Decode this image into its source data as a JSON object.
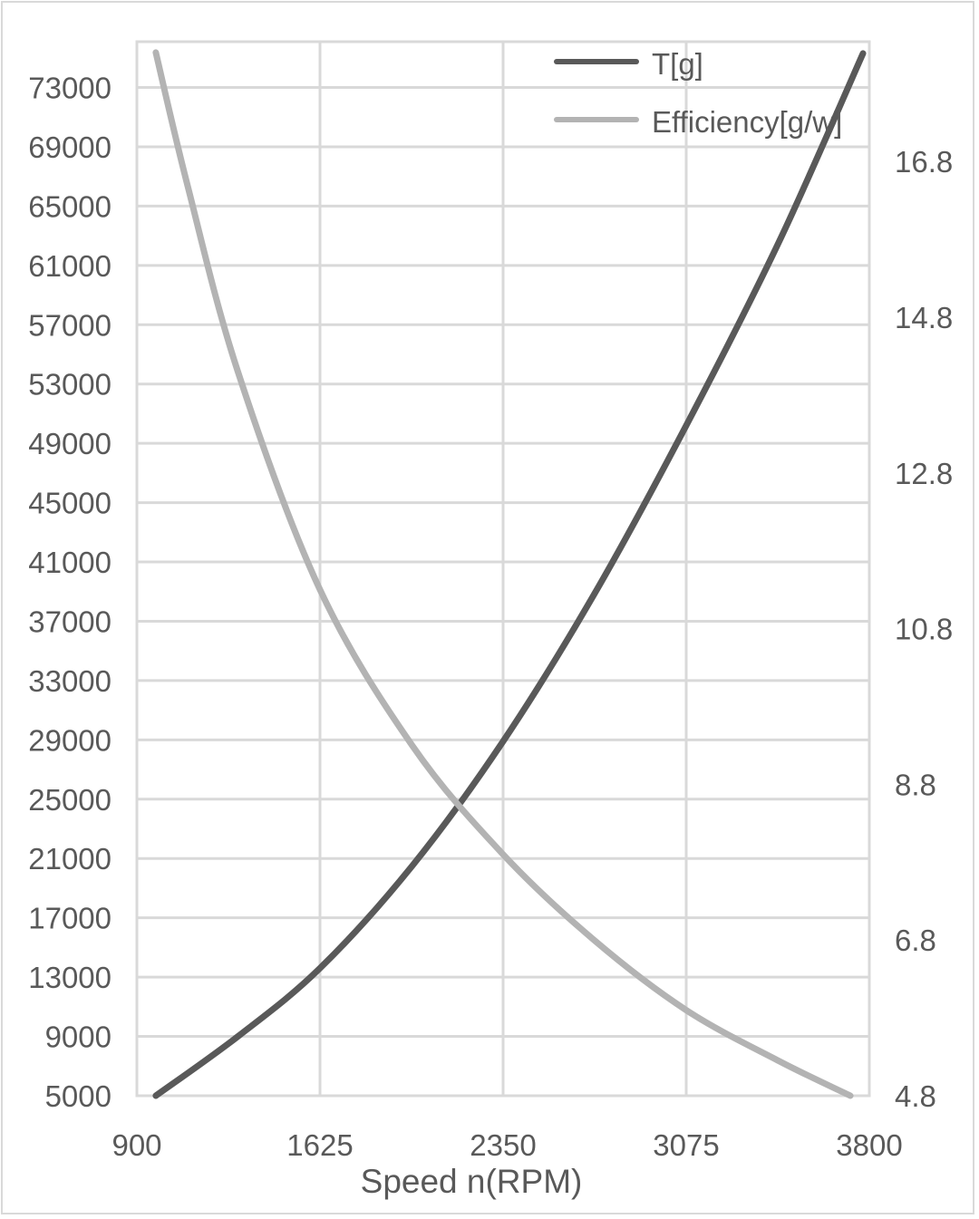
{
  "chart_data": {
    "type": "line",
    "title": "",
    "xlabel": "Speed n(RPM)",
    "ylabel": "",
    "y2label": "",
    "xlim": [
      900,
      3800
    ],
    "ylim": [
      5000,
      76000
    ],
    "y2lim": [
      4.8,
      18.3
    ],
    "x_ticks": [
      "900",
      "1625",
      "2350",
      "3075",
      "3800"
    ],
    "y_ticks": [
      "5000",
      "9000",
      "13000",
      "17000",
      "21000",
      "25000",
      "29000",
      "33000",
      "37000",
      "41000",
      "45000",
      "49000",
      "53000",
      "57000",
      "61000",
      "65000",
      "69000",
      "73000"
    ],
    "y2_ticks": [
      "4.8",
      "6.8",
      "8.8",
      "10.8",
      "12.8",
      "14.8",
      "16.8"
    ],
    "grid": true,
    "legend_position": "top-right",
    "series": [
      {
        "name": "T[g]",
        "axis": "left",
        "color": "#595959",
        "x": [
          975,
          1300,
          1625,
          1990,
          2350,
          2710,
          3075,
          3440,
          3775
        ],
        "values": [
          5000,
          9000,
          13600,
          20500,
          28900,
          38800,
          50200,
          62500,
          75300
        ]
      },
      {
        "name": "Efficiency[g/w]",
        "axis": "right",
        "color": "#b3b3b3",
        "x": [
          975,
          1100,
          1300,
          1625,
          1990,
          2350,
          2710,
          3075,
          3440,
          3725
        ],
        "values": [
          18.2,
          16.5,
          14.1,
          11.3,
          9.3,
          7.9,
          6.8,
          5.9,
          5.25,
          4.8
        ]
      }
    ]
  },
  "legend": {
    "items": [
      {
        "label": "T[g]",
        "color": "#595959"
      },
      {
        "label": "Efficiency[g/w]",
        "color": "#b3b3b3"
      }
    ]
  }
}
